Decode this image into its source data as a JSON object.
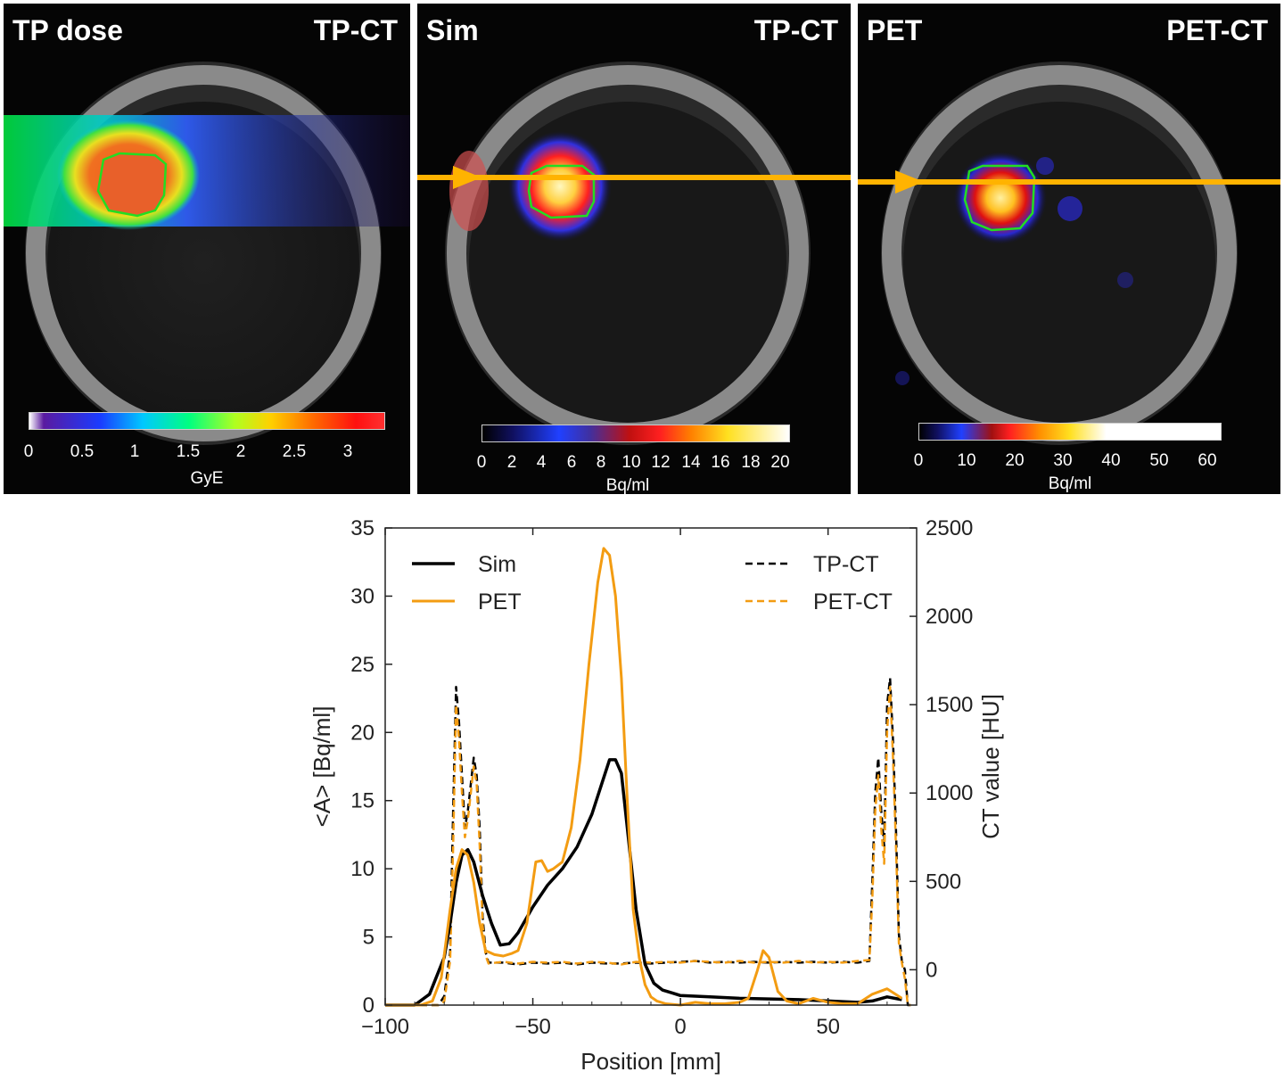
{
  "panels": [
    {
      "title": "TP dose",
      "subtitle": "TP-CT",
      "colorbar": {
        "ticks": [
          "0",
          "0.5",
          "1",
          "1.5",
          "2",
          "2.5",
          "3"
        ],
        "unit": "GyE"
      }
    },
    {
      "title": "Sim",
      "subtitle": "TP-CT",
      "colorbar": {
        "ticks": [
          "0",
          "2",
          "4",
          "6",
          "8",
          "10",
          "12",
          "14",
          "16",
          "18",
          "20"
        ],
        "unit": "Bq/ml"
      }
    },
    {
      "title": "PET",
      "subtitle": "PET-CT",
      "colorbar": {
        "ticks": [
          "0",
          "10",
          "20",
          "30",
          "40",
          "50",
          "60"
        ],
        "unit": "Bq/ml"
      }
    }
  ],
  "colors": {
    "sim": "#000000",
    "pet": "#f39c12",
    "tpct": "#000000",
    "petct": "#f39c12",
    "beam": "#ffb300",
    "contour": "#22dd22"
  },
  "chart_data": {
    "type": "line",
    "xlabel": "Position [mm]",
    "ylabel": "<A> [Bq/ml]",
    "y2label": "CT value [HU]",
    "xlim": [
      -100,
      80
    ],
    "ylim": [
      0,
      35
    ],
    "y2lim": [
      -200,
      2500
    ],
    "xticks": [
      -100,
      -50,
      0,
      50
    ],
    "xtick_labels": [
      "−100",
      "−50",
      "0",
      "50"
    ],
    "yticks": [
      0,
      5,
      10,
      15,
      20,
      25,
      30,
      35
    ],
    "y2ticks": [
      0,
      500,
      1000,
      1500,
      2000,
      2500
    ],
    "legend_left": [
      "Sim",
      "PET"
    ],
    "legend_right": [
      "TP-CT",
      "PET-CT"
    ],
    "series": [
      {
        "name": "Sim",
        "axis": "left",
        "style": "solid",
        "x": [
          -100,
          -90,
          -85,
          -80,
          -78,
          -76,
          -74,
          -72,
          -70,
          -67,
          -64,
          -61,
          -58,
          -55,
          -50,
          -45,
          -40,
          -35,
          -30,
          -27,
          -24,
          -22,
          -20,
          -18,
          -15,
          -12,
          -9,
          -6,
          -3,
          0,
          10,
          20,
          30,
          40,
          50,
          60,
          65,
          70,
          75
        ],
        "y": [
          0,
          0,
          0.8,
          3.5,
          6,
          9,
          11,
          11.4,
          10.5,
          8,
          6,
          4.4,
          4.5,
          5.3,
          7.2,
          8.8,
          10,
          11.6,
          14,
          16,
          18,
          18,
          17,
          13,
          7,
          3,
          1.6,
          1.1,
          0.9,
          0.7,
          0.6,
          0.5,
          0.45,
          0.4,
          0.3,
          0.2,
          0.3,
          0.6,
          0.4
        ]
      },
      {
        "name": "PET",
        "axis": "left",
        "style": "solid",
        "x": [
          -100,
          -88,
          -84,
          -81,
          -78,
          -76,
          -74,
          -72,
          -70,
          -68,
          -66,
          -63,
          -60,
          -57,
          -55,
          -52,
          -49,
          -47,
          -45,
          -43,
          -40,
          -37,
          -34,
          -31,
          -28,
          -26,
          -24,
          -22,
          -20,
          -18,
          -16,
          -14,
          -12,
          -10,
          -8,
          -5,
          0,
          5,
          10,
          15,
          20,
          23,
          26,
          28,
          30,
          33,
          36,
          40,
          45,
          50,
          55,
          60,
          65,
          70,
          75
        ],
        "y": [
          0,
          0,
          0.3,
          2,
          7,
          10,
          11.4,
          11,
          9,
          6,
          4,
          3.7,
          3.6,
          3.8,
          4,
          6,
          10.5,
          10.6,
          9.8,
          10,
          10.5,
          13,
          18,
          25,
          31,
          33.5,
          33,
          30,
          24,
          15,
          7,
          3.5,
          1.5,
          0.6,
          0.3,
          0.1,
          0,
          0.2,
          0.1,
          0.1,
          0.2,
          0.5,
          2.5,
          4,
          3.5,
          1,
          0.3,
          0.1,
          0.5,
          0.2,
          0.1,
          0.1,
          0.8,
          1.2,
          0.5
        ]
      },
      {
        "name": "TP-CT",
        "axis": "right",
        "style": "dashed",
        "x": [
          -100,
          -82,
          -80,
          -78,
          -77,
          -76,
          -75,
          -74,
          -73,
          -72,
          -71,
          -70,
          -69,
          -68,
          -67,
          -66,
          -65,
          -60,
          -55,
          -50,
          -45,
          -40,
          -35,
          -30,
          -25,
          -20,
          -15,
          -10,
          -5,
          0,
          5,
          10,
          15,
          20,
          25,
          30,
          35,
          40,
          45,
          50,
          55,
          60,
          64,
          65,
          66,
          67,
          68,
          69,
          70,
          71,
          72,
          73,
          74,
          75,
          76,
          77,
          78
        ],
        "y": [
          -200,
          -200,
          -150,
          100,
          900,
          1600,
          1400,
          1100,
          800,
          900,
          1050,
          1200,
          1100,
          800,
          300,
          100,
          40,
          40,
          30,
          40,
          35,
          40,
          30,
          40,
          35,
          35,
          40,
          35,
          40,
          45,
          50,
          40,
          45,
          40,
          45,
          40,
          45,
          40,
          45,
          40,
          45,
          40,
          50,
          500,
          1000,
          1200,
          900,
          700,
          1500,
          1650,
          1300,
          800,
          200,
          50,
          0,
          -200,
          -200
        ]
      },
      {
        "name": "PET-CT",
        "axis": "right",
        "style": "dashed",
        "x": [
          -100,
          -82,
          -80,
          -78,
          -77,
          -76,
          -75,
          -74,
          -73,
          -72,
          -71,
          -70,
          -69,
          -68,
          -67,
          -66,
          -65,
          -60,
          -55,
          -50,
          -45,
          -40,
          -35,
          -30,
          -25,
          -20,
          -15,
          -10,
          -5,
          0,
          5,
          10,
          15,
          20,
          25,
          30,
          35,
          40,
          45,
          50,
          55,
          60,
          64,
          65,
          66,
          67,
          68,
          69,
          70,
          71,
          72,
          73,
          74,
          75,
          76,
          77,
          78
        ],
        "y": [
          -200,
          -200,
          -180,
          50,
          700,
          1500,
          1300,
          1000,
          750,
          850,
          1000,
          1150,
          1050,
          700,
          250,
          80,
          35,
          45,
          35,
          45,
          40,
          45,
          35,
          45,
          40,
          30,
          45,
          40,
          45,
          40,
          50,
          45,
          40,
          50,
          40,
          45,
          40,
          50,
          40,
          45,
          40,
          50,
          55,
          400,
          900,
          1100,
          800,
          600,
          1350,
          1600,
          1200,
          700,
          150,
          40,
          -50,
          -200,
          -200
        ]
      }
    ]
  }
}
